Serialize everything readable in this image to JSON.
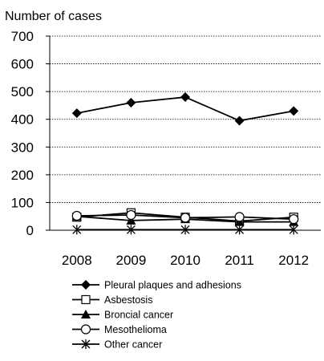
{
  "chart_data": {
    "type": "line",
    "title": "",
    "ylabel": "Number of cases",
    "xlabel": "",
    "categories": [
      "2008",
      "2009",
      "2010",
      "2011",
      "2012"
    ],
    "ylim": [
      0,
      700
    ],
    "yticks": [
      0,
      100,
      200,
      300,
      400,
      500,
      600,
      700
    ],
    "grid": true,
    "legend_position": "bottom",
    "series": [
      {
        "name": "Pleural plaques and adhesions",
        "marker": "diamond",
        "values": [
          422,
          460,
          480,
          395,
          430
        ]
      },
      {
        "name": "Asbestosis",
        "marker": "square",
        "values": [
          47,
          63,
          47,
          33,
          47
        ]
      },
      {
        "name": "Broncial cancer",
        "marker": "triangle",
        "values": [
          50,
          35,
          40,
          30,
          30
        ]
      },
      {
        "name": "Mesothelioma",
        "marker": "circle",
        "values": [
          52,
          55,
          45,
          48,
          40
        ]
      },
      {
        "name": "Other cancer",
        "marker": "asterisk",
        "values": [
          2,
          2,
          2,
          2,
          2
        ]
      }
    ]
  }
}
